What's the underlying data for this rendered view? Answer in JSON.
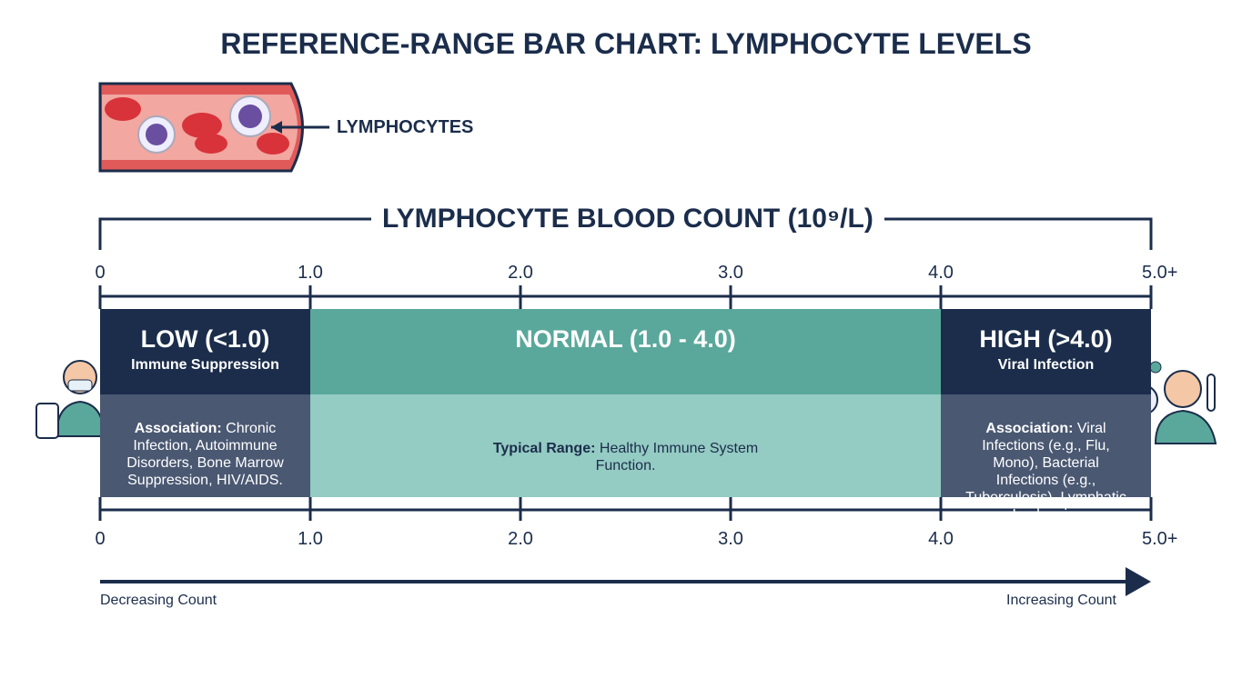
{
  "chart_data": {
    "type": "range",
    "title": "REFERENCE-RANGE BAR CHART: LYMPHOCYTE LEVELS",
    "illustration_label": "LYMPHOCYTES",
    "axis_title": "LYMPHOCYTE BLOOD COUNT (10⁹/L)",
    "xlim": [
      0,
      5
    ],
    "xticks": [
      0,
      {
        "value": 1,
        "label": "1.0"
      },
      {
        "value": 2,
        "label": "2.0"
      },
      {
        "value": 3,
        "label": "3.0"
      },
      {
        "value": 4,
        "label": "4.0"
      },
      {
        "value": 5,
        "label": "5.0+"
      }
    ],
    "bands": [
      {
        "name": "LOW (<1.0)",
        "subtitle": "Immune Suppression",
        "start": 0,
        "end": 1,
        "color": "#1b2d4b",
        "lower_color": "#4a5872",
        "text_color": "#ffffff",
        "detail_label": "Association:",
        "detail": "Chronic Infection, Autoimmune Disorders, Bone Marrow Suppression, HIV/AIDS."
      },
      {
        "name": "NORMAL (1.0 - 4.0)",
        "start": 1,
        "end": 4,
        "color": "#5aa89b",
        "lower_color": "#94cbc3",
        "text_color": "#1b2d4b",
        "detail_label": "Typical Range:",
        "detail": "Healthy Immune System Function."
      },
      {
        "name": "HIGH (>4.0)",
        "subtitle": "Viral Infection",
        "start": 4,
        "end": 5,
        "color": "#1b2d4b",
        "lower_color": "#4a5872",
        "text_color": "#ffffff",
        "detail_label": "Association:",
        "detail": "Viral Infections (e.g., Flu, Mono), Bacterial Infections (e.g., Tuberculosis), Lymphatic Leukemia."
      }
    ],
    "direction_labels": [
      "Decreasing Count",
      "Increasing Count"
    ]
  }
}
